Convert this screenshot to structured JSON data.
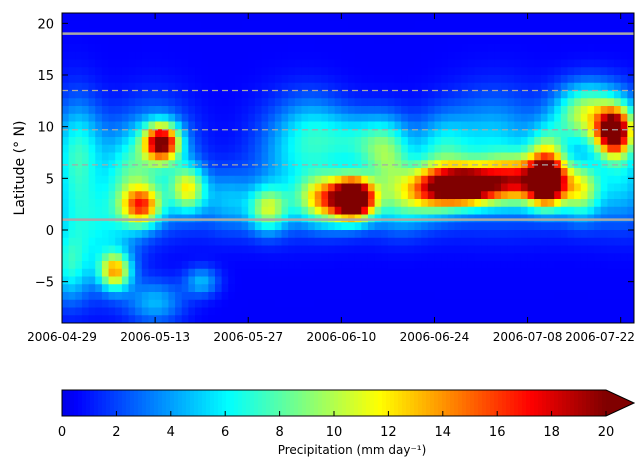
{
  "chart_data": [
    {
      "type": "heatmap",
      "title": "",
      "xlabel": "",
      "ylabel": "Latitude (° N)",
      "colormap": "jet",
      "value_range": [
        0,
        20
      ],
      "value_units": "mm day⁻¹",
      "x_start": "2006-04-29",
      "x_end": "2006-07-24",
      "x_ticks": [
        "2006-04-29",
        "2006-05-13",
        "2006-05-27",
        "2006-06-10",
        "2006-06-24",
        "2006-07-08",
        "2006-07-22"
      ],
      "ylim": [
        -9,
        21
      ],
      "y_ticks": [
        "−5",
        "0",
        "5",
        "10",
        "15",
        "20"
      ],
      "y_tick_values": [
        -5,
        0,
        5,
        10,
        15,
        20
      ],
      "background_value": 0.5,
      "rain_blobs": [
        {
          "date": "2006-05-01",
          "lat": 6.0,
          "sd_days": 2.5,
          "sd_lat": 4.5,
          "peak": 4
        },
        {
          "date": "2006-04-30",
          "lat": -3.5,
          "sd_days": 2.0,
          "sd_lat": 2.5,
          "peak": 5
        },
        {
          "date": "2006-05-02",
          "lat": 8.0,
          "sd_days": 3.0,
          "sd_lat": 3.0,
          "peak": 3
        },
        {
          "date": "2006-05-05",
          "lat": -1.0,
          "sd_days": 3.5,
          "sd_lat": 3.5,
          "peak": 4
        },
        {
          "date": "2006-05-07",
          "lat": -4.0,
          "sd_days": 1.6,
          "sd_lat": 1.2,
          "peak": 11
        },
        {
          "date": "2006-05-09",
          "lat": 5.0,
          "sd_days": 2.5,
          "sd_lat": 3.0,
          "peak": 4
        },
        {
          "date": "2006-05-11",
          "lat": 2.3,
          "sd_days": 2.0,
          "sd_lat": 1.3,
          "peak": 11
        },
        {
          "date": "2006-05-14",
          "lat": 8.5,
          "sd_days": 1.8,
          "sd_lat": 1.2,
          "peak": 17
        },
        {
          "date": "2006-05-13",
          "lat": 7.0,
          "sd_days": 4.0,
          "sd_lat": 3.5,
          "peak": 5
        },
        {
          "date": "2006-05-13",
          "lat": -7.0,
          "sd_days": 3.0,
          "sd_lat": 1.5,
          "peak": 4
        },
        {
          "date": "2006-05-18",
          "lat": 4.0,
          "sd_days": 1.8,
          "sd_lat": 1.5,
          "peak": 9
        },
        {
          "date": "2006-05-20",
          "lat": -5.0,
          "sd_days": 1.8,
          "sd_lat": 1.0,
          "peak": 4
        },
        {
          "date": "2006-05-24",
          "lat": 3.0,
          "sd_days": 2.5,
          "sd_lat": 2.0,
          "peak": 3
        },
        {
          "date": "2006-05-30",
          "lat": 2.0,
          "sd_days": 2.0,
          "sd_lat": 1.5,
          "peak": 8
        },
        {
          "date": "2006-06-03",
          "lat": 7.0,
          "sd_days": 4.5,
          "sd_lat": 3.5,
          "peak": 4
        },
        {
          "date": "2006-06-06",
          "lat": 9.5,
          "sd_days": 3.5,
          "sd_lat": 2.5,
          "peak": 3
        },
        {
          "date": "2006-06-08",
          "lat": 3.0,
          "sd_days": 3.0,
          "sd_lat": 1.6,
          "peak": 12
        },
        {
          "date": "2006-06-12",
          "lat": 3.0,
          "sd_days": 2.0,
          "sd_lat": 1.3,
          "peak": 24
        },
        {
          "date": "2006-06-13",
          "lat": 8.5,
          "sd_days": 4.0,
          "sd_lat": 2.0,
          "peak": 5
        },
        {
          "date": "2006-06-17",
          "lat": 7.0,
          "sd_days": 2.5,
          "sd_lat": 2.5,
          "peak": 6
        },
        {
          "date": "2006-06-19",
          "lat": 3.0,
          "sd_days": 3.0,
          "sd_lat": 2.0,
          "peak": 5
        },
        {
          "date": "2006-06-24",
          "lat": 4.0,
          "sd_days": 3.0,
          "sd_lat": 1.5,
          "peak": 12
        },
        {
          "date": "2006-06-29",
          "lat": 4.3,
          "sd_days": 3.0,
          "sd_lat": 1.2,
          "peak": 20
        },
        {
          "date": "2006-06-25",
          "lat": 7.5,
          "sd_days": 3.0,
          "sd_lat": 2.5,
          "peak": 5
        },
        {
          "date": "2006-07-03",
          "lat": 8.0,
          "sd_days": 5.0,
          "sd_lat": 3.5,
          "peak": 5
        },
        {
          "date": "2006-07-06",
          "lat": 4.8,
          "sd_days": 3.5,
          "sd_lat": 1.5,
          "peak": 13
        },
        {
          "date": "2006-07-11",
          "lat": 4.5,
          "sd_days": 2.0,
          "sd_lat": 1.5,
          "peak": 20
        },
        {
          "date": "2006-07-11",
          "lat": 7.0,
          "sd_days": 2.0,
          "sd_lat": 2.0,
          "peak": 8
        },
        {
          "date": "2006-07-16",
          "lat": 4.0,
          "sd_days": 2.0,
          "sd_lat": 1.8,
          "peak": 9
        },
        {
          "date": "2006-07-16",
          "lat": 11.0,
          "sd_days": 3.0,
          "sd_lat": 2.0,
          "peak": 6
        },
        {
          "date": "2006-07-21",
          "lat": 9.5,
          "sd_days": 1.8,
          "sd_lat": 1.5,
          "peak": 19
        },
        {
          "date": "2006-07-22",
          "lat": 6.0,
          "sd_days": 3.0,
          "sd_lat": 3.0,
          "peak": 5
        },
        {
          "date": "2006-07-19",
          "lat": 11.5,
          "sd_days": 4.0,
          "sd_lat": 2.0,
          "peak": 5
        }
      ],
      "reference_lines": [
        {
          "lat": 19.0,
          "style": "solid",
          "color": "#a8a8a8"
        },
        {
          "lat": 1.0,
          "style": "solid",
          "color": "#a8a8a8"
        },
        {
          "lat": 13.5,
          "style": "dashed",
          "color": "#a8a8a8"
        },
        {
          "lat": 9.7,
          "style": "dashed",
          "color": "#a8a8a8"
        },
        {
          "lat": 6.3,
          "style": "dashed",
          "color": "#a8a8a8"
        }
      ]
    },
    {
      "type": "colorbar",
      "label": "Precipitation (mm day⁻¹)",
      "ticks": [
        "0",
        "2",
        "4",
        "6",
        "8",
        "10",
        "12",
        "14",
        "16",
        "18",
        "20"
      ],
      "range": [
        0,
        20
      ],
      "extend": "max"
    }
  ]
}
